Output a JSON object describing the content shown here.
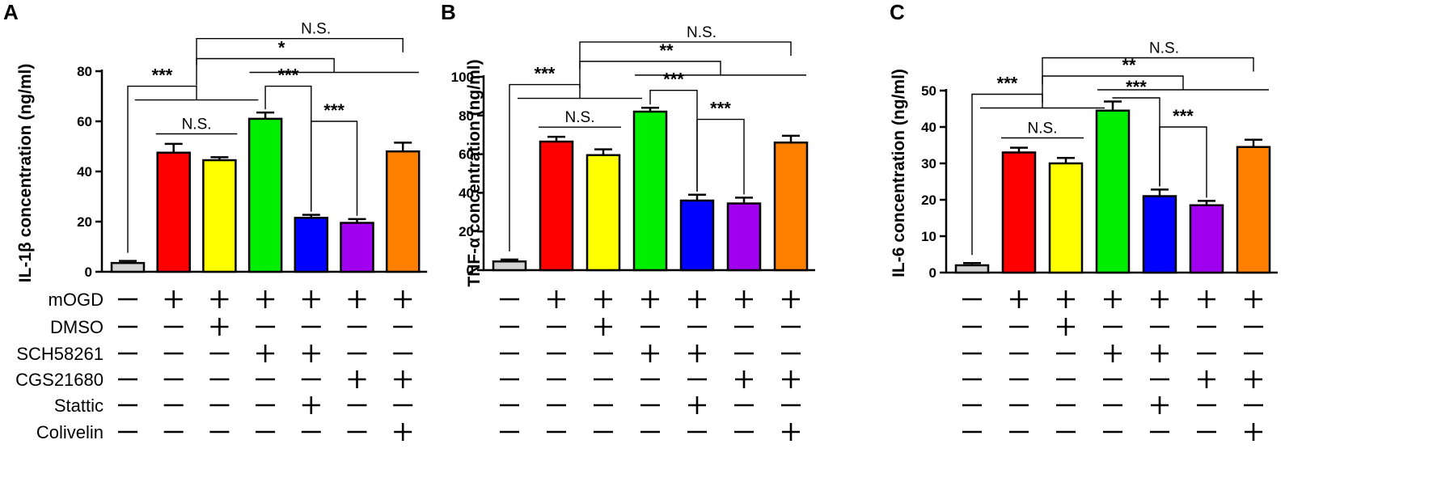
{
  "condition_labels": [
    "mOGD",
    "DMSO",
    "SCH58261",
    "CGS21680",
    "Stattic",
    "Colivelin"
  ],
  "condition_matrix": [
    [
      "-",
      "+",
      "+",
      "+",
      "+",
      "+",
      "+"
    ],
    [
      "-",
      "-",
      "+",
      "-",
      "-",
      "-",
      "-"
    ],
    [
      "-",
      "-",
      "-",
      "+",
      "+",
      "-",
      "-"
    ],
    [
      "-",
      "-",
      "-",
      "-",
      "-",
      "+",
      "+"
    ],
    [
      "-",
      "-",
      "-",
      "-",
      "+",
      "-",
      "-"
    ],
    [
      "-",
      "-",
      "-",
      "-",
      "-",
      "-",
      "+"
    ]
  ],
  "colors": [
    "#d3d3d3",
    "#ff0000",
    "#ffff00",
    "#00ee00",
    "#0000ff",
    "#a000ee",
    "#ff8000"
  ],
  "chart_data": [
    {
      "panel": "A",
      "type": "bar",
      "ylabel": "IL-1β  concentration (ng/ml)",
      "ylim": [
        0,
        80
      ],
      "yticks": [
        0,
        20,
        40,
        60,
        80
      ],
      "values": [
        3.5,
        47.5,
        44.5,
        61,
        21.5,
        19.5,
        48
      ],
      "errors": [
        0.8,
        3.5,
        1.2,
        2.5,
        1.2,
        1.5,
        3.5
      ],
      "annotations": [
        {
          "label": "N.S.",
          "type": "bar",
          "from": 1,
          "to": 2,
          "at": 55
        },
        {
          "label": "***",
          "type": "bar",
          "from": 4,
          "to": 5,
          "at": 60
        },
        {
          "label": "***",
          "type": "bar",
          "from": 3,
          "to": 4,
          "at": 74
        },
        {
          "label": "***",
          "type": "ab",
          "from": 0,
          "groupFrom": 1,
          "groupTo": 2,
          "at": 74
        },
        {
          "label": "*",
          "type": "ab",
          "from": 1.5,
          "groupFrom": 3.5,
          "groupTo": 5.5,
          "at": 85
        },
        {
          "label": "N.S.",
          "type": "ab",
          "from": 1.5,
          "groupFrom": 6,
          "groupTo": 6,
          "at": 93
        }
      ]
    },
    {
      "panel": "B",
      "type": "bar",
      "ylabel": "TNF-α  concentration (ng/ml)",
      "ylim": [
        0,
        100
      ],
      "yticks": [
        0,
        20,
        40,
        60,
        80,
        100
      ],
      "values": [
        4.5,
        66.5,
        59.5,
        82,
        36,
        34.5,
        66
      ],
      "errors": [
        1,
        2.5,
        3,
        2,
        3,
        3,
        3.5
      ],
      "annotations": [
        {
          "label": "N.S.",
          "type": "bar",
          "from": 1,
          "to": 2,
          "at": 74
        },
        {
          "label": "***",
          "type": "bar",
          "from": 4,
          "to": 5,
          "at": 78
        },
        {
          "label": "***",
          "type": "bar",
          "from": 3,
          "to": 4,
          "at": 93
        },
        {
          "label": "***",
          "type": "ab",
          "from": 0,
          "groupFrom": 1,
          "groupTo": 2,
          "at": 96
        },
        {
          "label": "**",
          "type": "ab",
          "from": 1.5,
          "groupFrom": 3.5,
          "groupTo": 5.5,
          "at": 108
        },
        {
          "label": "N.S.",
          "type": "ab",
          "from": 1.5,
          "groupFrom": 6,
          "groupTo": 6,
          "at": 118
        }
      ]
    },
    {
      "panel": "C",
      "type": "bar",
      "ylabel": "IL-6 concentration (ng/ml)",
      "ylim": [
        0,
        50
      ],
      "yticks": [
        0,
        10,
        20,
        30,
        40,
        50
      ],
      "values": [
        2,
        33,
        30,
        44.5,
        21,
        18.5,
        34.5
      ],
      "errors": [
        0.6,
        1.3,
        1.5,
        2.5,
        1.8,
        1.2,
        2
      ],
      "annotations": [
        {
          "label": "N.S.",
          "type": "bar",
          "from": 1,
          "to": 2,
          "at": 37
        },
        {
          "label": "***",
          "type": "bar",
          "from": 4,
          "to": 5,
          "at": 40
        },
        {
          "label": "***",
          "type": "bar",
          "from": 3,
          "to": 4,
          "at": 48
        },
        {
          "label": "***",
          "type": "ab",
          "from": 0,
          "groupFrom": 1,
          "groupTo": 2,
          "at": 49
        },
        {
          "label": "**",
          "type": "ab",
          "from": 1.5,
          "groupFrom": 3.5,
          "groupTo": 5.5,
          "at": 54
        },
        {
          "label": "N.S.",
          "type": "ab",
          "from": 1.5,
          "groupFrom": 6,
          "groupTo": 6,
          "at": 59
        }
      ]
    }
  ]
}
